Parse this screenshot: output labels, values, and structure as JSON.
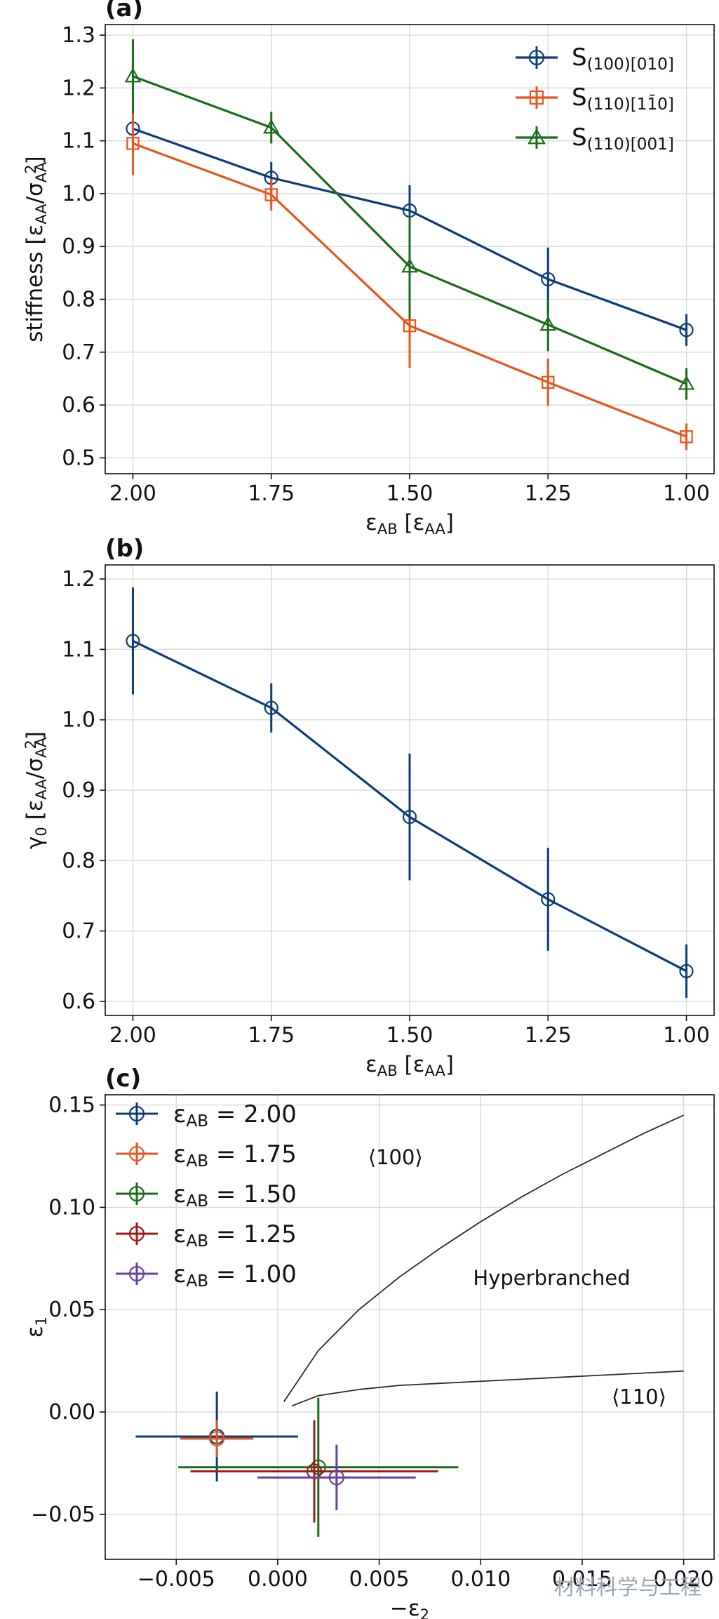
{
  "colors": {
    "blue": "#0e3b7a",
    "orange": "#e8561c",
    "green": "#1c6b1c",
    "red": "#a11a1a",
    "purple": "#6b3fa0",
    "boundary": "#2b2b2b"
  },
  "watermark": "材料科学与工程",
  "chart_data": [
    {
      "type": "line",
      "panel_label": "(a)",
      "xlabel": "ε_AB [ε_AA]",
      "ylabel": "stiffness [ε_AA/σ²_AA]",
      "xlim": [
        2.05,
        0.95
      ],
      "ylim": [
        0.47,
        1.32
      ],
      "x": [
        2.0,
        1.75,
        1.5,
        1.25,
        1.0
      ],
      "xticks": [
        "2.00",
        "1.75",
        "1.50",
        "1.25",
        "1.00"
      ],
      "yticks": [
        "0.5",
        "0.6",
        "0.7",
        "0.8",
        "0.9",
        "1.0",
        "1.1",
        "1.2",
        "1.3"
      ],
      "legend_position": "top-right",
      "series": [
        {
          "name": "S(100)[010]",
          "color": "blue",
          "marker": "circle",
          "values": [
            1.123,
            1.03,
            0.968,
            0.838,
            0.742
          ],
          "errors": [
            0.03,
            0.03,
            0.048,
            0.06,
            0.03
          ]
        },
        {
          "name": "S(110)[1-10]",
          "color": "orange",
          "marker": "square",
          "values": [
            1.095,
            0.998,
            0.75,
            0.643,
            0.54
          ],
          "errors": [
            0.06,
            0.03,
            0.08,
            0.045,
            0.025
          ]
        },
        {
          "name": "S(110)[001]",
          "color": "green",
          "marker": "triangle",
          "values": [
            1.222,
            1.125,
            0.862,
            0.752,
            0.64
          ],
          "errors": [
            0.07,
            0.03,
            0.1,
            0.05,
            0.03
          ]
        }
      ]
    },
    {
      "type": "line",
      "panel_label": "(b)",
      "xlabel": "ε_AB [ε_AA]",
      "ylabel": "γ₀ [ε_AA/σ²_AA]",
      "xlim": [
        2.05,
        0.95
      ],
      "ylim": [
        0.58,
        1.22
      ],
      "x": [
        2.0,
        1.75,
        1.5,
        1.25,
        1.0
      ],
      "xticks": [
        "2.00",
        "1.75",
        "1.50",
        "1.25",
        "1.00"
      ],
      "yticks": [
        "0.6",
        "0.7",
        "0.8",
        "0.9",
        "1.0",
        "1.1",
        "1.2"
      ],
      "series": [
        {
          "name": "γ0",
          "color": "blue",
          "marker": "circle",
          "values": [
            1.112,
            1.017,
            0.862,
            0.745,
            0.643
          ],
          "errors": [
            0.076,
            0.035,
            0.09,
            0.073,
            0.038
          ]
        }
      ]
    },
    {
      "type": "scatter",
      "panel_label": "(c)",
      "xlabel": "−ε₂",
      "ylabel": "ε₁",
      "xlim": [
        -0.0085,
        0.0215
      ],
      "ylim": [
        -0.072,
        0.155
      ],
      "xticks": [
        "−0.005",
        "0.000",
        "0.005",
        "0.010",
        "0.015",
        "0.020"
      ],
      "xtick_values": [
        -0.005,
        0.0,
        0.005,
        0.01,
        0.015,
        0.02
      ],
      "yticks": [
        "−0.05",
        "0.00",
        "0.05",
        "0.10",
        "0.15"
      ],
      "ytick_values": [
        -0.05,
        0.0,
        0.05,
        0.1,
        0.15
      ],
      "legend_position": "top-left",
      "points": [
        {
          "label": "ε_AB = 2.00",
          "legend_value": "2.00",
          "color": "blue",
          "x": -0.003,
          "y": -0.012,
          "xerr": 0.004,
          "yerr": 0.022
        },
        {
          "label": "ε_AB = 1.75",
          "legend_value": "1.75",
          "color": "orange",
          "x": -0.003,
          "y": -0.013,
          "xerr": 0.0018,
          "yerr": 0.009
        },
        {
          "label": "ε_AB = 1.50",
          "legend_value": "1.50",
          "color": "green",
          "x": 0.002,
          "y": -0.027,
          "xerr": 0.0069,
          "yerr": 0.034
        },
        {
          "label": "ε_AB = 1.25",
          "legend_value": "1.25",
          "color": "red",
          "x": 0.0018,
          "y": -0.029,
          "xerr": 0.0061,
          "yerr": 0.025
        },
        {
          "label": "ε_AB = 1.00",
          "legend_value": "1.00",
          "color": "purple",
          "x": 0.0029,
          "y": -0.032,
          "xerr": 0.0039,
          "yerr": 0.016
        }
      ],
      "boundaries": [
        {
          "name": "upper",
          "x": [
            0.0003,
            0.002,
            0.004,
            0.006,
            0.008,
            0.01,
            0.012,
            0.014,
            0.016,
            0.018,
            0.02
          ],
          "y": [
            0.005,
            0.03,
            0.05,
            0.066,
            0.08,
            0.093,
            0.105,
            0.116,
            0.126,
            0.136,
            0.145
          ]
        },
        {
          "name": "lower",
          "x": [
            0.0007,
            0.002,
            0.004,
            0.006,
            0.008,
            0.01,
            0.012,
            0.014,
            0.016,
            0.018,
            0.02
          ],
          "y": [
            0.003,
            0.008,
            0.011,
            0.013,
            0.014,
            0.015,
            0.016,
            0.017,
            0.018,
            0.019,
            0.02
          ]
        }
      ],
      "annotations": [
        {
          "text": "⟨100⟩",
          "x": 0.0058,
          "y": 0.121
        },
        {
          "text": "Hyperbranched",
          "x": 0.0135,
          "y": 0.062
        },
        {
          "text": "⟨110⟩",
          "x": 0.0178,
          "y": 0.004
        }
      ]
    }
  ]
}
